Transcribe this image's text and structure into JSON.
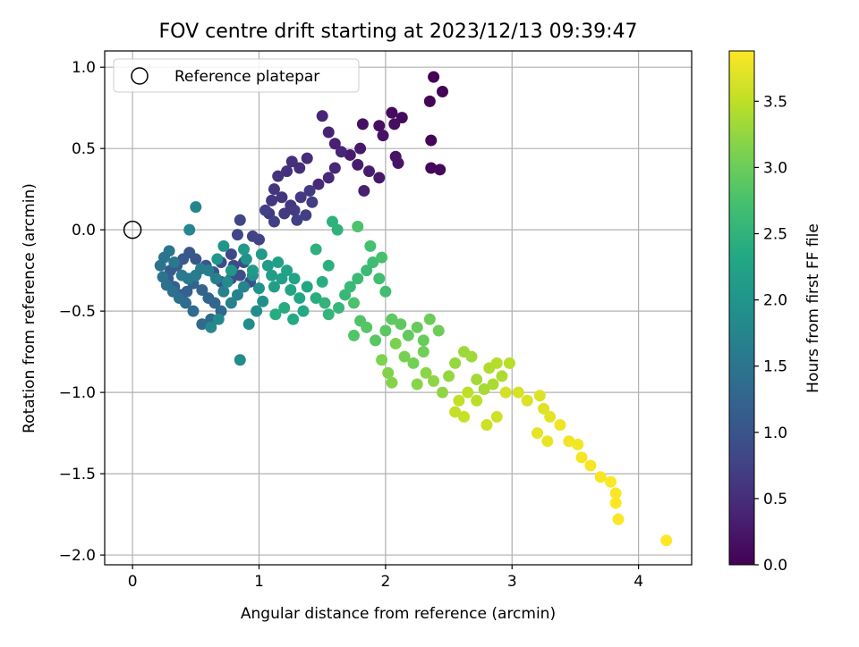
{
  "chart_data": {
    "type": "scatter",
    "title": "FOV centre drift starting at 2023/12/13 09:39:47",
    "xlabel": "Angular distance from reference (arcmin)",
    "ylabel": "Rotation from reference (arcmin)",
    "colorbar_label": "Hours from first FF file",
    "colormap": "viridis",
    "xlim": [
      -0.22,
      4.42
    ],
    "ylim": [
      -2.06,
      1.1
    ],
    "clim": [
      0,
      3.88
    ],
    "xticks": [
      0,
      1,
      2,
      3,
      4
    ],
    "xtick_labels": [
      "0",
      "1",
      "2",
      "3",
      "4"
    ],
    "yticks": [
      -2.0,
      -1.5,
      -1.0,
      -0.5,
      0.0,
      0.5,
      1.0
    ],
    "ytick_labels": [
      "−2.0",
      "−1.5",
      "−1.0",
      "−0.5",
      "0.0",
      "0.5",
      "1.0"
    ],
    "cticks": [
      0.0,
      0.5,
      1.0,
      1.5,
      2.0,
      2.5,
      3.0,
      3.5
    ],
    "ctick_labels": [
      "0.0",
      "0.5",
      "1.0",
      "1.5",
      "2.0",
      "2.5",
      "3.0",
      "3.5"
    ],
    "grid": true,
    "legend": {
      "position": "top-left",
      "entries": [
        "Reference platepar"
      ]
    },
    "reference_point": {
      "x": 0,
      "y": 0,
      "label": "Reference platepar"
    },
    "points": [
      [
        2.38,
        0.94,
        0.02
      ],
      [
        2.45,
        0.85,
        0.03
      ],
      [
        2.35,
        0.79,
        0.05
      ],
      [
        2.36,
        0.55,
        0.06
      ],
      [
        2.36,
        0.38,
        0.07
      ],
      [
        2.43,
        0.37,
        0.08
      ],
      [
        2.05,
        0.72,
        0.1
      ],
      [
        2.13,
        0.69,
        0.12
      ],
      [
        2.07,
        0.65,
        0.14
      ],
      [
        1.95,
        0.64,
        0.15
      ],
      [
        1.82,
        0.65,
        0.17
      ],
      [
        1.98,
        0.58,
        0.19
      ],
      [
        2.08,
        0.45,
        0.2
      ],
      [
        2.1,
        0.41,
        0.22
      ],
      [
        1.95,
        0.32,
        0.24
      ],
      [
        1.8,
        0.5,
        0.26
      ],
      [
        1.72,
        0.46,
        0.28
      ],
      [
        1.78,
        0.4,
        0.3
      ],
      [
        1.87,
        0.36,
        0.32
      ],
      [
        1.83,
        0.24,
        0.34
      ],
      [
        1.6,
        0.53,
        0.36
      ],
      [
        1.55,
        0.6,
        0.38
      ],
      [
        1.5,
        0.7,
        0.4
      ],
      [
        1.65,
        0.48,
        0.41
      ],
      [
        1.6,
        0.38,
        0.43
      ],
      [
        1.55,
        0.32,
        0.45
      ],
      [
        1.47,
        0.28,
        0.47
      ],
      [
        1.38,
        0.44,
        0.49
      ],
      [
        1.32,
        0.38,
        0.51
      ],
      [
        1.26,
        0.42,
        0.53
      ],
      [
        1.22,
        0.36,
        0.55
      ],
      [
        1.15,
        0.33,
        0.57
      ],
      [
        1.12,
        0.25,
        0.58
      ],
      [
        1.18,
        0.2,
        0.6
      ],
      [
        1.25,
        0.15,
        0.61
      ],
      [
        1.1,
        0.18,
        0.62
      ],
      [
        1.08,
        0.1,
        0.63
      ],
      [
        1.2,
        0.1,
        0.64
      ],
      [
        1.28,
        0.12,
        0.65
      ],
      [
        1.33,
        0.2,
        0.66
      ],
      [
        1.4,
        0.24,
        0.67
      ],
      [
        1.42,
        0.17,
        0.69
      ],
      [
        1.37,
        0.09,
        0.7
      ],
      [
        1.3,
        0.06,
        0.72
      ],
      [
        1.12,
        0.05,
        0.73
      ],
      [
        1.05,
        0.12,
        0.74
      ],
      [
        1.0,
        -0.06,
        0.76
      ],
      [
        0.95,
        -0.04,
        0.78
      ],
      [
        0.85,
        0.06,
        0.8
      ],
      [
        0.83,
        -0.03,
        0.82
      ],
      [
        0.78,
        -0.15,
        0.84
      ],
      [
        0.7,
        -0.2,
        0.86
      ],
      [
        0.8,
        -0.22,
        0.88
      ],
      [
        0.88,
        -0.2,
        0.9
      ],
      [
        0.85,
        -0.28,
        0.92
      ],
      [
        0.93,
        -0.32,
        0.94
      ],
      [
        0.78,
        -0.3,
        0.96
      ],
      [
        0.7,
        -0.32,
        0.98
      ],
      [
        0.64,
        -0.26,
        1.0
      ],
      [
        0.58,
        -0.22,
        1.02
      ],
      [
        0.5,
        -0.18,
        1.04
      ],
      [
        0.45,
        -0.14,
        1.06
      ],
      [
        0.4,
        -0.18,
        1.08
      ],
      [
        0.35,
        -0.22,
        1.1
      ],
      [
        0.3,
        -0.25,
        1.12
      ],
      [
        0.28,
        -0.3,
        1.14
      ],
      [
        0.33,
        -0.35,
        1.16
      ],
      [
        0.38,
        -0.4,
        1.18
      ],
      [
        0.43,
        -0.38,
        1.2
      ],
      [
        0.48,
        -0.33,
        1.22
      ],
      [
        0.55,
        -0.37,
        1.24
      ],
      [
        0.6,
        -0.42,
        1.26
      ],
      [
        0.65,
        -0.45,
        1.28
      ],
      [
        0.7,
        -0.5,
        1.3
      ],
      [
        0.62,
        -0.55,
        1.32
      ],
      [
        0.55,
        -0.58,
        1.34
      ],
      [
        0.48,
        -0.5,
        1.36
      ],
      [
        0.42,
        -0.45,
        1.38
      ],
      [
        0.37,
        -0.42,
        1.4
      ],
      [
        0.32,
        -0.38,
        1.42
      ],
      [
        0.27,
        -0.34,
        1.44
      ],
      [
        0.24,
        -0.29,
        1.46
      ],
      [
        0.22,
        -0.22,
        1.48
      ],
      [
        0.25,
        -0.17,
        1.5
      ],
      [
        0.29,
        -0.13,
        1.52
      ],
      [
        0.33,
        -0.2,
        1.54
      ],
      [
        0.39,
        -0.28,
        1.56
      ],
      [
        0.44,
        -0.3,
        1.58
      ],
      [
        0.5,
        -0.28,
        1.6
      ],
      [
        0.54,
        -0.24,
        1.62
      ],
      [
        0.6,
        -0.25,
        1.64
      ],
      [
        0.66,
        -0.3,
        1.66
      ],
      [
        0.72,
        -0.38,
        1.68
      ],
      [
        0.78,
        -0.45,
        1.7
      ],
      [
        0.83,
        -0.4,
        1.72
      ],
      [
        0.88,
        -0.35,
        1.74
      ],
      [
        0.5,
        0.14,
        1.76
      ],
      [
        0.45,
        0.0,
        1.78
      ],
      [
        0.62,
        -0.6,
        1.8
      ],
      [
        0.68,
        -0.55,
        1.82
      ],
      [
        0.75,
        -0.32,
        1.84
      ],
      [
        0.85,
        -0.8,
        1.86
      ],
      [
        0.92,
        -0.58,
        1.88
      ],
      [
        0.98,
        -0.5,
        1.9
      ],
      [
        1.03,
        -0.44,
        1.92
      ],
      [
        1.0,
        -0.36,
        1.94
      ],
      [
        0.95,
        -0.28,
        1.96
      ],
      [
        0.9,
        -0.18,
        1.98
      ],
      [
        0.72,
        -0.1,
        2.0
      ],
      [
        0.67,
        -0.18,
        2.02
      ],
      [
        0.78,
        -0.25,
        2.04
      ],
      [
        0.88,
        -0.12,
        2.06
      ],
      [
        0.95,
        -0.25,
        2.08
      ],
      [
        1.02,
        -0.15,
        2.1
      ],
      [
        1.07,
        -0.22,
        2.12
      ],
      [
        1.1,
        -0.28,
        2.14
      ],
      [
        1.12,
        -0.35,
        2.16
      ],
      [
        1.18,
        -0.3,
        2.18
      ],
      [
        1.15,
        -0.2,
        2.2
      ],
      [
        1.22,
        -0.25,
        2.22
      ],
      [
        1.28,
        -0.3,
        2.24
      ],
      [
        1.25,
        -0.37,
        2.26
      ],
      [
        1.32,
        -0.42,
        2.28
      ],
      [
        1.38,
        -0.35,
        2.3
      ],
      [
        1.35,
        -0.5,
        2.32
      ],
      [
        1.27,
        -0.55,
        2.34
      ],
      [
        1.2,
        -0.48,
        2.36
      ],
      [
        1.13,
        -0.52,
        2.38
      ],
      [
        1.45,
        -0.42,
        2.4
      ],
      [
        1.5,
        -0.32,
        2.42
      ],
      [
        1.55,
        -0.22,
        2.44
      ],
      [
        1.45,
        -0.12,
        2.46
      ],
      [
        1.58,
        0.05,
        2.48
      ],
      [
        1.62,
        0.0,
        2.5
      ],
      [
        1.52,
        -0.45,
        2.52
      ],
      [
        1.55,
        -0.52,
        2.54
      ],
      [
        1.63,
        -0.48,
        2.56
      ],
      [
        1.68,
        -0.4,
        2.58
      ],
      [
        1.72,
        -0.35,
        2.6
      ],
      [
        1.78,
        -0.3,
        2.62
      ],
      [
        1.85,
        -0.25,
        2.64
      ],
      [
        1.9,
        -0.2,
        2.66
      ],
      [
        1.95,
        -0.3,
        2.68
      ],
      [
        2.0,
        -0.38,
        2.7
      ],
      [
        1.88,
        -0.1,
        2.72
      ],
      [
        1.97,
        -0.17,
        2.74
      ],
      [
        1.78,
        0.02,
        2.76
      ],
      [
        1.75,
        -0.45,
        2.78
      ],
      [
        1.8,
        -0.56,
        2.8
      ],
      [
        1.75,
        -0.65,
        2.82
      ],
      [
        1.85,
        -0.6,
        2.84
      ],
      [
        1.92,
        -0.68,
        2.86
      ],
      [
        2.0,
        -0.62,
        2.88
      ],
      [
        2.05,
        -0.55,
        2.9
      ],
      [
        2.12,
        -0.58,
        2.92
      ],
      [
        2.18,
        -0.65,
        2.94
      ],
      [
        2.25,
        -0.6,
        2.96
      ],
      [
        2.3,
        -0.68,
        2.98
      ],
      [
        2.35,
        -0.55,
        3.0
      ],
      [
        2.42,
        -0.62,
        3.02
      ],
      [
        2.3,
        -0.75,
        3.04
      ],
      [
        2.22,
        -0.82,
        3.06
      ],
      [
        2.15,
        -0.78,
        3.08
      ],
      [
        2.08,
        -0.7,
        3.1
      ],
      [
        1.97,
        -0.8,
        3.12
      ],
      [
        2.02,
        -0.88,
        3.14
      ],
      [
        2.05,
        -0.94,
        3.16
      ],
      [
        2.25,
        -0.95,
        3.18
      ],
      [
        2.32,
        -0.88,
        3.2
      ],
      [
        2.38,
        -0.93,
        3.22
      ],
      [
        2.45,
        -1.0,
        3.24
      ],
      [
        2.5,
        -0.9,
        3.26
      ],
      [
        2.55,
        -0.82,
        3.28
      ],
      [
        2.62,
        -0.75,
        3.3
      ],
      [
        2.68,
        -0.78,
        3.32
      ],
      [
        2.72,
        -0.92,
        3.34
      ],
      [
        2.78,
        -0.98,
        3.36
      ],
      [
        2.85,
        -0.95,
        3.38
      ],
      [
        2.92,
        -0.9,
        3.4
      ],
      [
        2.82,
        -0.85,
        3.42
      ],
      [
        2.88,
        -0.82,
        3.44
      ],
      [
        2.98,
        -0.82,
        3.46
      ],
      [
        2.72,
        -1.05,
        3.48
      ],
      [
        2.65,
        -1.0,
        3.5
      ],
      [
        2.58,
        -1.05,
        3.52
      ],
      [
        2.55,
        -1.12,
        3.54
      ],
      [
        2.62,
        -1.15,
        3.56
      ],
      [
        2.8,
        -1.2,
        3.58
      ],
      [
        2.88,
        -1.15,
        3.6
      ],
      [
        2.95,
        -1.0,
        3.62
      ],
      [
        3.05,
        -1.0,
        3.64
      ],
      [
        3.12,
        -1.05,
        3.66
      ],
      [
        3.22,
        -1.02,
        3.68
      ],
      [
        3.25,
        -1.1,
        3.7
      ],
      [
        3.3,
        -1.15,
        3.72
      ],
      [
        3.2,
        -1.25,
        3.74
      ],
      [
        3.28,
        -1.3,
        3.76
      ],
      [
        3.38,
        -1.2,
        3.78
      ],
      [
        3.45,
        -1.3,
        3.8
      ],
      [
        3.52,
        -1.32,
        3.82
      ],
      [
        3.55,
        -1.4,
        3.83
      ],
      [
        3.62,
        -1.45,
        3.84
      ],
      [
        3.7,
        -1.52,
        3.85
      ],
      [
        3.78,
        -1.55,
        3.86
      ],
      [
        3.82,
        -1.62,
        3.87
      ],
      [
        3.84,
        -1.78,
        3.87
      ],
      [
        4.22,
        -1.91,
        3.88
      ],
      [
        3.82,
        -1.68,
        3.88
      ]
    ]
  }
}
